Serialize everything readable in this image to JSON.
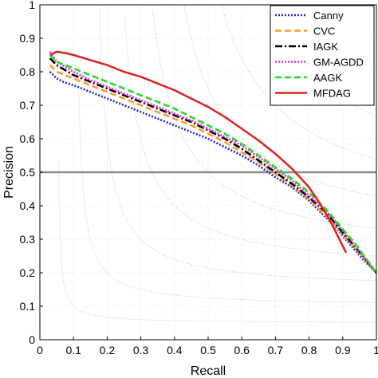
{
  "chart_data": {
    "type": "line",
    "title": "",
    "xlabel": "Recall",
    "ylabel": "Precision",
    "xlim": [
      0,
      1
    ],
    "ylim": [
      0,
      1
    ],
    "xticks": [
      "0",
      "0.1",
      "0.2",
      "0.3",
      "0.4",
      "0.5",
      "0.6",
      "0.7",
      "0.8",
      "0.9",
      "1"
    ],
    "yticks": [
      "0",
      "0.1",
      "0.2",
      "0.3",
      "0.4",
      "0.5",
      "0.6",
      "0.7",
      "0.8",
      "0.9",
      "1"
    ],
    "grid": true,
    "legend_position": "top-right",
    "f_measure_isolines": [
      0.1,
      0.2,
      0.3,
      0.4,
      0.5,
      0.6,
      0.7,
      0.8,
      0.9
    ],
    "reference_line": {
      "y": 0.5,
      "color": "#8c8c8c"
    },
    "series": [
      {
        "name": "Canny",
        "color": "#2222cc",
        "style": "dotted",
        "points": [
          [
            0.03,
            0.8
          ],
          [
            0.04,
            0.79
          ],
          [
            0.05,
            0.78
          ],
          [
            0.07,
            0.77
          ],
          [
            0.1,
            0.76
          ],
          [
            0.15,
            0.74
          ],
          [
            0.2,
            0.72
          ],
          [
            0.25,
            0.7
          ],
          [
            0.3,
            0.68
          ],
          [
            0.35,
            0.66
          ],
          [
            0.4,
            0.64
          ],
          [
            0.45,
            0.62
          ],
          [
            0.5,
            0.6
          ],
          [
            0.55,
            0.575
          ],
          [
            0.6,
            0.55
          ],
          [
            0.65,
            0.52
          ],
          [
            0.7,
            0.485
          ],
          [
            0.75,
            0.455
          ],
          [
            0.8,
            0.415
          ],
          [
            0.85,
            0.365
          ],
          [
            0.88,
            0.335
          ],
          [
            0.9,
            0.31
          ],
          [
            0.93,
            0.275
          ],
          [
            0.96,
            0.24
          ],
          [
            1.0,
            0.2
          ]
        ]
      },
      {
        "name": "CVC",
        "color": "#ff9a2e",
        "style": "dashed",
        "points": [
          [
            0.03,
            0.82
          ],
          [
            0.05,
            0.8
          ],
          [
            0.1,
            0.78
          ],
          [
            0.15,
            0.76
          ],
          [
            0.2,
            0.74
          ],
          [
            0.25,
            0.72
          ],
          [
            0.3,
            0.7
          ],
          [
            0.35,
            0.68
          ],
          [
            0.4,
            0.66
          ],
          [
            0.45,
            0.64
          ],
          [
            0.5,
            0.615
          ],
          [
            0.55,
            0.59
          ],
          [
            0.6,
            0.56
          ],
          [
            0.65,
            0.53
          ],
          [
            0.7,
            0.495
          ],
          [
            0.75,
            0.46
          ],
          [
            0.8,
            0.42
          ],
          [
            0.85,
            0.37
          ],
          [
            0.88,
            0.34
          ],
          [
            0.9,
            0.315
          ],
          [
            0.93,
            0.28
          ],
          [
            0.96,
            0.245
          ],
          [
            1.0,
            0.2
          ]
        ]
      },
      {
        "name": "IAGK",
        "color": "#000000",
        "style": "dashdot",
        "points": [
          [
            0.03,
            0.84
          ],
          [
            0.05,
            0.82
          ],
          [
            0.1,
            0.79
          ],
          [
            0.15,
            0.77
          ],
          [
            0.2,
            0.75
          ],
          [
            0.25,
            0.73
          ],
          [
            0.3,
            0.71
          ],
          [
            0.35,
            0.69
          ],
          [
            0.4,
            0.67
          ],
          [
            0.45,
            0.65
          ],
          [
            0.5,
            0.625
          ],
          [
            0.55,
            0.6
          ],
          [
            0.6,
            0.57
          ],
          [
            0.65,
            0.535
          ],
          [
            0.7,
            0.5
          ],
          [
            0.75,
            0.465
          ],
          [
            0.8,
            0.425
          ],
          [
            0.85,
            0.38
          ],
          [
            0.88,
            0.345
          ],
          [
            0.9,
            0.32
          ],
          [
            0.93,
            0.285
          ],
          [
            0.96,
            0.25
          ],
          [
            1.0,
            0.2
          ]
        ]
      },
      {
        "name": "GM-AGDD",
        "color": "#ee22ee",
        "style": "dotted",
        "points": [
          [
            0.03,
            0.86
          ],
          [
            0.05,
            0.83
          ],
          [
            0.1,
            0.8
          ],
          [
            0.15,
            0.775
          ],
          [
            0.2,
            0.755
          ],
          [
            0.25,
            0.735
          ],
          [
            0.3,
            0.715
          ],
          [
            0.35,
            0.695
          ],
          [
            0.4,
            0.675
          ],
          [
            0.45,
            0.655
          ],
          [
            0.5,
            0.63
          ],
          [
            0.55,
            0.605
          ],
          [
            0.6,
            0.58
          ],
          [
            0.65,
            0.545
          ],
          [
            0.7,
            0.51
          ],
          [
            0.75,
            0.475
          ],
          [
            0.8,
            0.43
          ],
          [
            0.85,
            0.385
          ],
          [
            0.88,
            0.35
          ],
          [
            0.9,
            0.325
          ],
          [
            0.93,
            0.29
          ],
          [
            0.96,
            0.25
          ],
          [
            1.0,
            0.2
          ]
        ]
      },
      {
        "name": "AAGK",
        "color": "#22dd22",
        "style": "dashed",
        "points": [
          [
            0.03,
            0.85
          ],
          [
            0.05,
            0.83
          ],
          [
            0.1,
            0.81
          ],
          [
            0.15,
            0.79
          ],
          [
            0.2,
            0.77
          ],
          [
            0.25,
            0.75
          ],
          [
            0.3,
            0.73
          ],
          [
            0.35,
            0.71
          ],
          [
            0.4,
            0.69
          ],
          [
            0.45,
            0.665
          ],
          [
            0.5,
            0.64
          ],
          [
            0.55,
            0.615
          ],
          [
            0.6,
            0.585
          ],
          [
            0.65,
            0.55
          ],
          [
            0.7,
            0.515
          ],
          [
            0.75,
            0.48
          ],
          [
            0.8,
            0.44
          ],
          [
            0.85,
            0.39
          ],
          [
            0.88,
            0.355
          ],
          [
            0.9,
            0.33
          ],
          [
            0.93,
            0.295
          ],
          [
            0.96,
            0.255
          ],
          [
            1.0,
            0.2
          ]
        ]
      },
      {
        "name": "MFDAG",
        "color": "#dd2222",
        "style": "solid",
        "points": [
          [
            0.03,
            0.85
          ],
          [
            0.05,
            0.86
          ],
          [
            0.08,
            0.855
          ],
          [
            0.1,
            0.85
          ],
          [
            0.15,
            0.835
          ],
          [
            0.2,
            0.82
          ],
          [
            0.25,
            0.8
          ],
          [
            0.3,
            0.785
          ],
          [
            0.35,
            0.765
          ],
          [
            0.4,
            0.745
          ],
          [
            0.45,
            0.72
          ],
          [
            0.5,
            0.695
          ],
          [
            0.55,
            0.665
          ],
          [
            0.6,
            0.63
          ],
          [
            0.65,
            0.595
          ],
          [
            0.7,
            0.555
          ],
          [
            0.75,
            0.51
          ],
          [
            0.8,
            0.455
          ],
          [
            0.83,
            0.41
          ],
          [
            0.86,
            0.36
          ],
          [
            0.88,
            0.32
          ],
          [
            0.9,
            0.28
          ],
          [
            0.91,
            0.26
          ]
        ]
      }
    ]
  }
}
